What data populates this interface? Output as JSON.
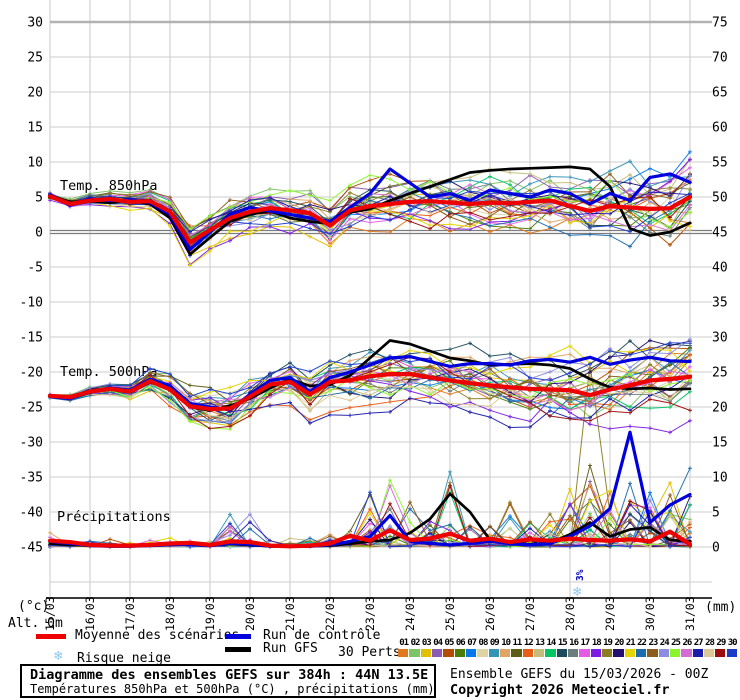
{
  "footer": {
    "title": "Diagramme des ensembles GEFS sur 384h : 44N 13.5E",
    "subtitle": "Températures 850hPa et 500hPa (°C) , précipitations (mm)",
    "run_info": "Ensemble GEFS du 15/03/2026 - 00Z",
    "copyright": "Copyright 2026 Meteociel.fr"
  },
  "legend": {
    "mean_label": "Moyenne des scénarios",
    "control_label": "Run de contrôle",
    "gfs_label": "Run GFS",
    "perts_label": "30 Perts.",
    "snow_label": "Risque neige",
    "snow_icon": "❄"
  },
  "chart_data": {
    "type": "line",
    "title": "Diagramme des ensembles GEFS sur 384h : 44N 13.5E",
    "time": {
      "run_label": "15/03/2026 - 00Z",
      "range_hours": 384,
      "step_hours": 12,
      "points": 33
    },
    "x_tick_dates": [
      "15/03",
      "16/03",
      "17/03",
      "18/03",
      "19/03",
      "20/03",
      "21/03",
      "22/03",
      "23/03",
      "24/03",
      "25/03",
      "26/03",
      "27/03",
      "28/03",
      "29/03",
      "30/03",
      "31/03"
    ],
    "left_axis": {
      "label": "(°c)",
      "alt_label": "Alt. 0m",
      "unit": "°C",
      "ticks": [
        30,
        25,
        20,
        15,
        10,
        5,
        0,
        -5,
        -10,
        -15,
        -20,
        -25,
        -30,
        -35,
        -40,
        -45
      ]
    },
    "right_axis": {
      "label": "(mm)",
      "unit": "mm",
      "ticks": [
        75,
        70,
        65,
        60,
        55,
        50,
        45,
        40,
        35,
        30,
        25,
        20,
        15,
        10,
        5,
        0
      ]
    },
    "grid": {
      "shown": true,
      "vertical_step_days": 1
    },
    "series_styles": {
      "mean": {
        "label": "Moyenne des scénarios",
        "color": "#ee0000",
        "width": 4.2
      },
      "control": {
        "label": "Run de contrôle",
        "color": "#0000dd",
        "width": 3.2
      },
      "gfs": {
        "label": "Run GFS",
        "color": "#000000",
        "width": 2.7
      }
    },
    "panels": {
      "t850": {
        "label": "Temp. 850hPa",
        "mean": [
          5.1,
          4.0,
          4.5,
          4.7,
          4.3,
          4.4,
          2.9,
          -1.5,
          0.3,
          2.0,
          2.9,
          3.4,
          3.1,
          2.7,
          0.9,
          3.1,
          3.7,
          4.0,
          4.3,
          4.4,
          4.2,
          4.0,
          4.2,
          4.1,
          4.3,
          4.5,
          3.7,
          3.0,
          3.7,
          3.5,
          3.3,
          3.4,
          5.0
        ],
        "control": [
          5.3,
          3.8,
          4.7,
          4.5,
          4.6,
          4.2,
          2.5,
          -2.5,
          0.0,
          2.5,
          3.5,
          3.0,
          2.5,
          2.0,
          1.5,
          3.5,
          5.5,
          9.0,
          7.0,
          5.0,
          5.5,
          4.5,
          6.0,
          5.5,
          5.0,
          6.0,
          5.5,
          4.0,
          5.5,
          4.5,
          7.8,
          8.3,
          7.1
        ],
        "gfs": [
          5.2,
          4.3,
          4.4,
          4.2,
          4.5,
          4.0,
          2.0,
          -3.2,
          -0.8,
          1.5,
          2.5,
          3.0,
          2.0,
          1.5,
          1.2,
          2.8,
          3.3,
          4.5,
          5.5,
          6.5,
          7.5,
          8.5,
          8.8,
          9.0,
          9.1,
          9.2,
          9.3,
          9.0,
          6.5,
          0.5,
          -0.5,
          0.0,
          1.3
        ],
        "spread": [
          0.7,
          0.9,
          1.0,
          1.2,
          1.4,
          1.6,
          2.2,
          3.0,
          2.6,
          2.6,
          2.8,
          3.0,
          3.0,
          3.2,
          3.3,
          3.4,
          3.5,
          3.6,
          3.7,
          3.8,
          4.0,
          4.1,
          4.2,
          4.3,
          4.4,
          4.6,
          4.8,
          5.0,
          5.2,
          5.5,
          5.8,
          6.2,
          6.5
        ]
      },
      "t500": {
        "label": "Temp. 500hPa",
        "mean": [
          -23.4,
          -23.6,
          -22.8,
          -22.4,
          -22.8,
          -21.3,
          -22.5,
          -24.9,
          -25.3,
          -25.2,
          -23.5,
          -21.8,
          -21.4,
          -23.2,
          -21.4,
          -21.2,
          -20.6,
          -20.3,
          -20.3,
          -20.8,
          -21.2,
          -21.6,
          -21.9,
          -22.2,
          -22.4,
          -22.5,
          -22.6,
          -23.3,
          -22.5,
          -21.9,
          -21.2,
          -21.0,
          -20.7
        ],
        "control": [
          -23.5,
          -23.8,
          -22.9,
          -22.3,
          -22.6,
          -21.0,
          -22.0,
          -24.5,
          -25.0,
          -25.4,
          -23.2,
          -21.2,
          -20.8,
          -22.8,
          -20.8,
          -20.0,
          -19.0,
          -18.0,
          -17.8,
          -18.5,
          -19.2,
          -18.8,
          -18.8,
          -19.0,
          -18.4,
          -18.2,
          -18.6,
          -17.9,
          -18.9,
          -18.3,
          -17.9,
          -18.4,
          -18.5
        ],
        "gfs": [
          -23.4,
          -23.7,
          -22.7,
          -22.5,
          -22.9,
          -21.5,
          -22.3,
          -25.0,
          -25.5,
          -24.8,
          -23.8,
          -22.3,
          -21.0,
          -22.0,
          -21.8,
          -20.5,
          -18.0,
          -15.5,
          -16.0,
          -17.0,
          -18.0,
          -18.4,
          -19.0,
          -18.9,
          -18.8,
          -19.0,
          -19.5,
          -21.0,
          -22.2,
          -22.4,
          -22.3,
          -22.5,
          -22.4
        ],
        "spread": [
          0.5,
          0.7,
          0.9,
          1.2,
          1.5,
          1.9,
          2.6,
          3.2,
          3.6,
          3.4,
          3.2,
          3.2,
          3.3,
          3.5,
          3.6,
          3.7,
          3.9,
          4.0,
          4.1,
          4.2,
          4.3,
          4.4,
          4.5,
          4.6,
          4.7,
          4.8,
          5.0,
          5.3,
          5.5,
          5.7,
          6.0,
          6.3,
          6.5
        ]
      },
      "precip": {
        "label": "Précipitations",
        "mean": [
          0.9,
          0.7,
          0.3,
          0.2,
          0.2,
          0.3,
          0.5,
          0.6,
          0.3,
          0.8,
          0.7,
          0.2,
          0.1,
          0.2,
          0.5,
          1.6,
          0.9,
          2.4,
          1.0,
          1.2,
          1.9,
          0.9,
          1.2,
          0.7,
          1.1,
          0.9,
          1.2,
          1.0,
          0.9,
          1.1,
          0.8,
          2.2,
          0.4
        ],
        "control": [
          0.8,
          0.5,
          0.2,
          0.1,
          0.1,
          0.2,
          0.3,
          0.4,
          0.2,
          0.5,
          0.4,
          0.1,
          0.1,
          0.1,
          0.3,
          0.8,
          1.5,
          4.5,
          0.8,
          0.5,
          0.3,
          0.5,
          0.8,
          0.5,
          0.3,
          0.5,
          1.5,
          3.0,
          5.5,
          16.4,
          3.5,
          6.0,
          7.5
        ],
        "gfs": [
          0.5,
          0.3,
          0.2,
          0.1,
          0.1,
          0.2,
          0.3,
          0.5,
          0.2,
          0.4,
          0.3,
          0.1,
          0.1,
          0.1,
          0.2,
          0.5,
          0.8,
          1.0,
          2.0,
          4.0,
          7.6,
          5.0,
          1.0,
          0.5,
          0.4,
          0.6,
          1.8,
          3.5,
          1.5,
          2.5,
          2.8,
          1.0,
          0.8
        ],
        "spike_max": [
          2.5,
          1.5,
          1.2,
          1.0,
          0.8,
          1.5,
          2.0,
          3.5,
          2.0,
          6.5,
          7.0,
          1.5,
          1.0,
          2.0,
          4.0,
          6.0,
          15.0,
          17.0,
          12.0,
          8.0,
          14.0,
          9.0,
          7.0,
          9.0,
          8.0,
          10.0,
          12.0,
          31.0,
          14.0,
          17.0,
          10.0,
          22.0,
          18.0
        ]
      }
    },
    "members": {
      "count": 30,
      "labels": [
        "01",
        "02",
        "03",
        "04",
        "05",
        "06",
        "07",
        "08",
        "09",
        "10",
        "11",
        "12",
        "13",
        "14",
        "15",
        "16",
        "17",
        "18",
        "19",
        "20",
        "21",
        "22",
        "23",
        "24",
        "25",
        "26",
        "27",
        "28",
        "29",
        "30"
      ],
      "colors": [
        "#e07820",
        "#7cc464",
        "#e0c000",
        "#8c5cb4",
        "#b44c00",
        "#4c7c04",
        "#0478e8",
        "#dcd4a4",
        "#3494b4",
        "#e0a464",
        "#5c5c14",
        "#e85c14",
        "#c4bc7c",
        "#04c464",
        "#1c4c5c",
        "#6c7c7c",
        "#e45ce4",
        "#7c1ce4",
        "#8c7c24",
        "#241070",
        "#e4d400",
        "#1c6cac",
        "#8c5c1c",
        "#8c8ce0",
        "#8cf42c",
        "#d46cd4",
        "#1c1cac",
        "#dcc894",
        "#9c0c0c",
        "#1c3cc8"
      ]
    },
    "annotations": {
      "snow_risk": {
        "hour": 318,
        "percent_label": "3%",
        "icon": "❄",
        "icon_color": "#8ec8f0",
        "text_color": "#0000bb"
      }
    }
  }
}
